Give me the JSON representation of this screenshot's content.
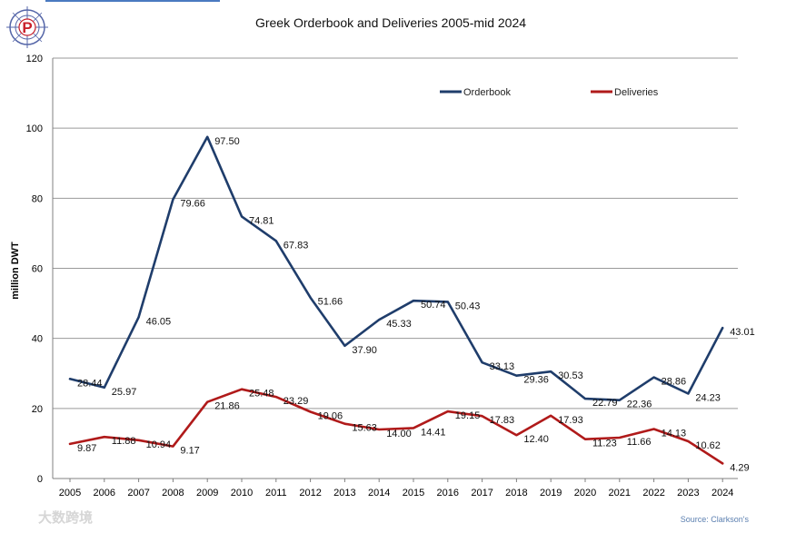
{
  "colors": {
    "orderbook": "#1F3D6B",
    "deliveries": "#B01A1A",
    "grid": "#9a9a9a",
    "axis": "#808080",
    "logo_ring": "#5566a8",
    "logo_red": "#c8202a",
    "source": "#5b7fb0",
    "top_rule": "#4a7ac0"
  },
  "logo": {
    "letter": "P"
  },
  "watermark": {
    "text": "大数跨境"
  },
  "source_note": "Source: Clarkson's",
  "chart_data": {
    "type": "line",
    "title": "Greek Orderbook and Deliveries 2005-mid 2024",
    "xlabel": "",
    "ylabel": "million DWT",
    "ylim": [
      0,
      120
    ],
    "yticks": [
      0,
      20,
      40,
      60,
      80,
      100,
      120
    ],
    "grid": true,
    "legend_position": "top-right",
    "categories": [
      "2005",
      "2006",
      "2007",
      "2008",
      "2009",
      "2010",
      "2011",
      "2012",
      "2013",
      "2014",
      "2015",
      "2016",
      "2017",
      "2018",
      "2019",
      "2020",
      "2021",
      "2022",
      "2023",
      "2024"
    ],
    "series": [
      {
        "name": "Orderbook",
        "values": [
          28.44,
          25.97,
          46.05,
          79.66,
          97.5,
          74.81,
          67.83,
          51.66,
          37.9,
          45.33,
          50.74,
          50.43,
          33.13,
          29.36,
          30.53,
          22.79,
          22.36,
          28.86,
          24.23,
          43.01
        ],
        "labels": [
          "28.44",
          "25.97",
          "46.05",
          "79.66",
          "97.50",
          "74.81",
          "67.83",
          "51.66",
          "37.90",
          "45.33",
          "50.74",
          "50.43",
          "33.13",
          "29.36",
          "30.53",
          "22.79",
          "22.36",
          "28.86",
          "24.23",
          "43.01"
        ]
      },
      {
        "name": "Deliveries",
        "values": [
          9.87,
          11.88,
          10.94,
          9.17,
          21.86,
          25.48,
          23.29,
          19.06,
          15.63,
          14.0,
          14.41,
          19.15,
          17.83,
          12.4,
          17.93,
          11.23,
          11.66,
          14.13,
          10.62,
          4.29
        ],
        "labels": [
          "9.87",
          "11.88",
          "10.94",
          "9.17",
          "21.86",
          "25.48",
          "23.29",
          "19.06",
          "15.63",
          "14.00",
          "14.41",
          "19.15",
          "17.83",
          "12.40",
          "17.93",
          "11.23",
          "11.66",
          "14.13",
          "10.62",
          "4.29"
        ]
      }
    ]
  }
}
